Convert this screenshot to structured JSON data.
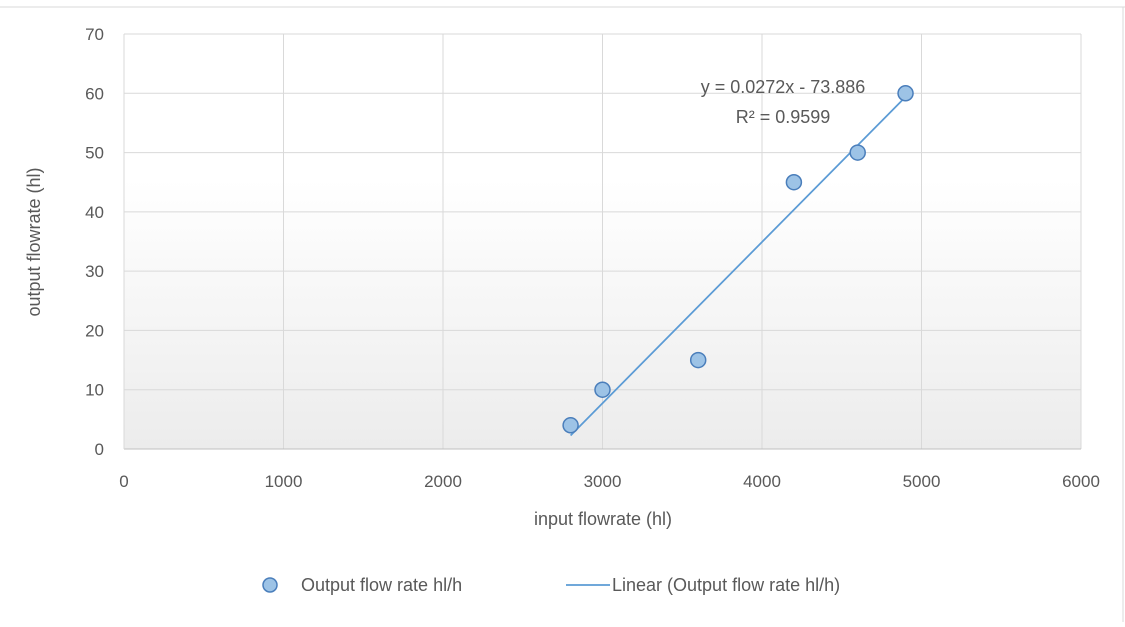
{
  "chart_data": {
    "type": "scatter",
    "title": "",
    "xlabel": "input flowrate (hl)",
    "ylabel": "output flowrate (hl)",
    "xlim": [
      0,
      6000
    ],
    "ylim": [
      0,
      70
    ],
    "x_ticks": [
      0,
      1000,
      2000,
      3000,
      4000,
      5000,
      6000
    ],
    "y_ticks": [
      0,
      10,
      20,
      30,
      40,
      50,
      60,
      70
    ],
    "grid": true,
    "legend_position": "bottom",
    "series": [
      {
        "name": "Output flow rate hl/h",
        "type": "scatter",
        "color": "#9DC3E6",
        "edge_color": "#4A7EBB",
        "points": [
          {
            "x": 2800,
            "y": 4
          },
          {
            "x": 3000,
            "y": 10
          },
          {
            "x": 3600,
            "y": 15
          },
          {
            "x": 4200,
            "y": 45
          },
          {
            "x": 4600,
            "y": 50
          },
          {
            "x": 4900,
            "y": 60
          }
        ]
      },
      {
        "name": "Linear (Output flow rate hl/h)",
        "type": "line",
        "color": "#5B9BD5",
        "slope": 0.0272,
        "intercept": -73.886,
        "x_range": [
          2800,
          4900
        ]
      }
    ],
    "annotations": {
      "equation": "y = 0.0272x - 73.886",
      "r_squared": "R² = 0.9599"
    }
  }
}
